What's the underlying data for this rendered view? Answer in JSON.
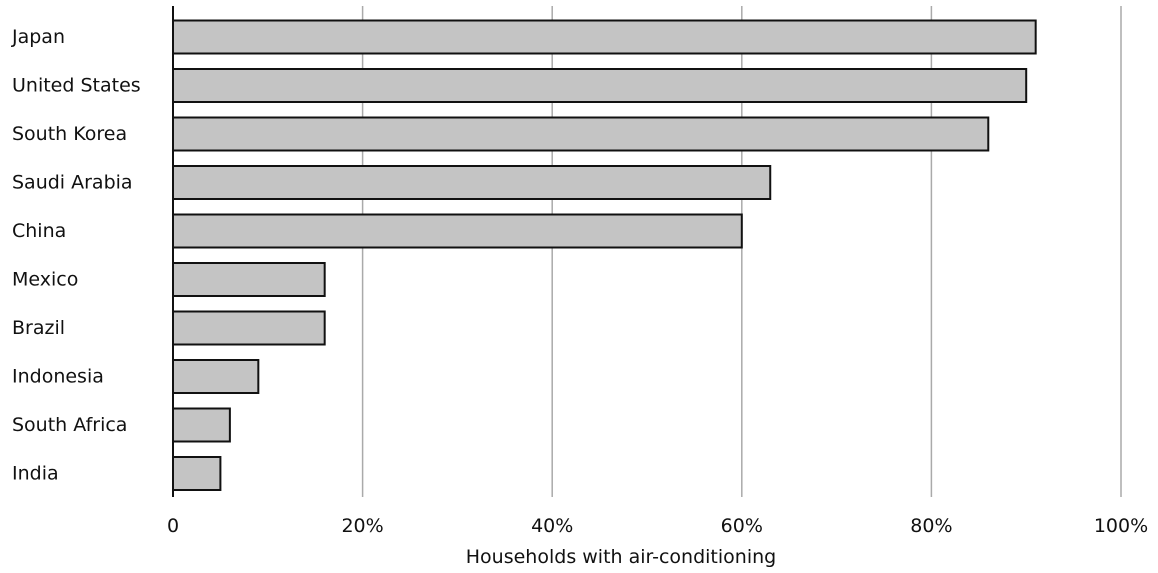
{
  "chart_data": {
    "type": "bar",
    "orientation": "horizontal",
    "categories": [
      "Japan",
      "United States",
      "South Korea",
      "Saudi Arabia",
      "China",
      "Mexico",
      "Brazil",
      "Indonesia",
      "South Africa",
      "India"
    ],
    "values": [
      91,
      90,
      86,
      63,
      60,
      16,
      16,
      9,
      6,
      5
    ],
    "xlabel": "Households with air-conditioning",
    "ylabel": "",
    "xlim": [
      0,
      100
    ],
    "xticks": [
      0,
      20,
      40,
      60,
      80,
      100
    ],
    "xtick_labels": [
      "0",
      "20%",
      "40%",
      "60%",
      "80%",
      "100%"
    ],
    "grid": "vertical",
    "colors": {
      "bar_fill": "#c4c4c4",
      "bar_stroke": "#111111",
      "grid": "#aaaaaa",
      "axis": "#111111"
    }
  }
}
